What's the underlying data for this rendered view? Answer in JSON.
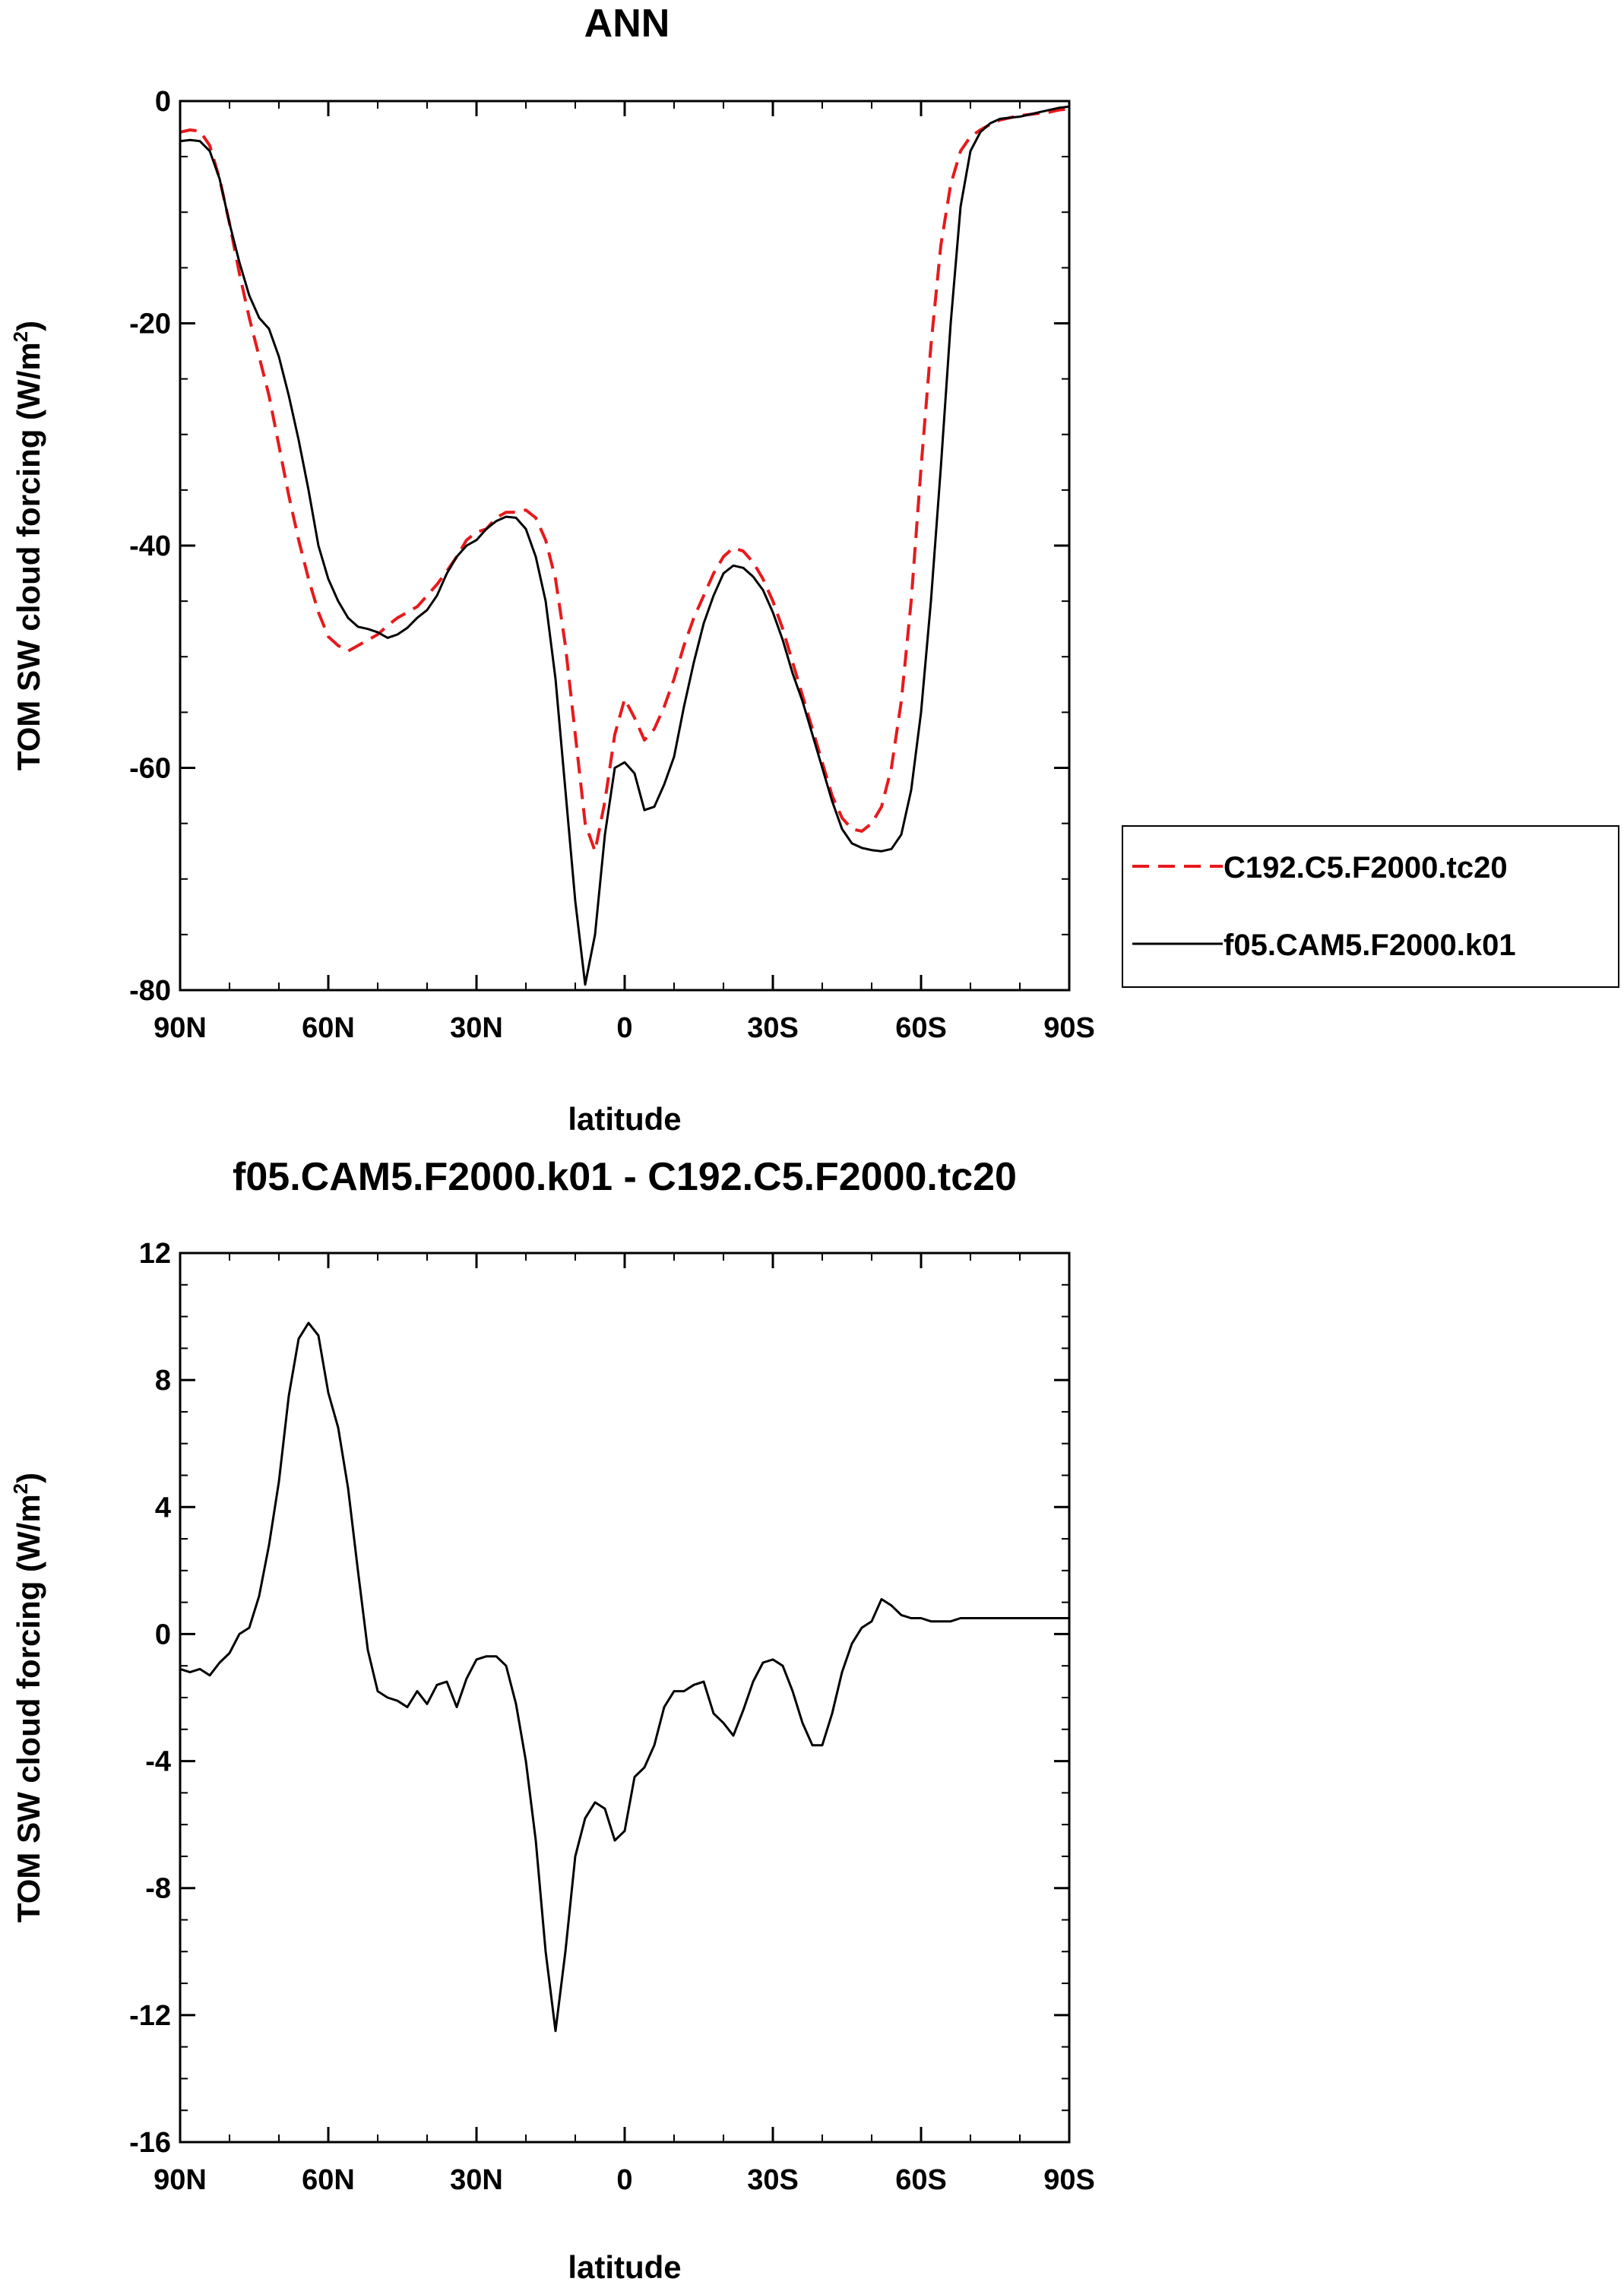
{
  "chart_data": [
    {
      "type": "line",
      "title": "ANN",
      "xlabel": "latitude",
      "ylabel_main": "TOM SW cloud forcing (W/m",
      "ylabel_sup": "2",
      "ylabel_close": ")",
      "xlim": [
        -90,
        90
      ],
      "ylim": [
        -80,
        0
      ],
      "x_ticks": [
        -90,
        -60,
        -30,
        0,
        30,
        60,
        90
      ],
      "x_tick_labels": [
        "90N",
        "60N",
        "30N",
        "0",
        "30S",
        "60S",
        "90S"
      ],
      "y_ticks": [
        0,
        -20,
        -40,
        -60,
        -80
      ],
      "y_tick_labels": [
        "0",
        "-20",
        "-40",
        "-60",
        "-80"
      ],
      "y_minor_step": 5,
      "x_minor_step": 10,
      "legend_position": "right",
      "series": [
        {
          "name": "C192.C5.F2000.tc20",
          "color": "#e8191c",
          "dash": "dashed",
          "x": [
            -90,
            -88,
            -86,
            -84,
            -82,
            -80,
            -78,
            -76,
            -74,
            -72,
            -70,
            -68,
            -66,
            -64,
            -62,
            -60,
            -58,
            -56,
            -54,
            -52,
            -50,
            -48,
            -46,
            -44,
            -42,
            -40,
            -38,
            -36,
            -34,
            -32,
            -30,
            -28,
            -26,
            -24,
            -22,
            -20,
            -18,
            -16,
            -14,
            -12,
            -10,
            -8,
            -6,
            -4,
            -2,
            0,
            2,
            4,
            6,
            8,
            10,
            12,
            14,
            16,
            18,
            20,
            22,
            24,
            26,
            28,
            30,
            32,
            34,
            36,
            38,
            40,
            42,
            44,
            46,
            48,
            50,
            52,
            54,
            56,
            58,
            60,
            62,
            64,
            66,
            68,
            70,
            72,
            74,
            76,
            78,
            80,
            82,
            84,
            86,
            88,
            90
          ],
          "y": [
            -2.8,
            -2.6,
            -2.7,
            -4,
            -7,
            -11,
            -15.5,
            -19.5,
            -23,
            -26.5,
            -31,
            -35.5,
            -39.5,
            -43,
            -46,
            -48.2,
            -49,
            -49.5,
            -49,
            -48.5,
            -48,
            -47.2,
            -46.5,
            -46,
            -45.5,
            -44.5,
            -43.5,
            -42.3,
            -41,
            -39.5,
            -38.8,
            -38.5,
            -37.5,
            -37,
            -37,
            -36.8,
            -37.5,
            -39.5,
            -43,
            -49,
            -57,
            -65,
            -67.5,
            -63,
            -57,
            -53.8,
            -55.5,
            -57.5,
            -56.5,
            -54.5,
            -52,
            -49,
            -46.5,
            -44.5,
            -42.5,
            -41,
            -40.2,
            -40.5,
            -41.5,
            -43,
            -45,
            -47.5,
            -50.5,
            -53.5,
            -56.5,
            -59.5,
            -62.5,
            -64.5,
            -65.5,
            -65.7,
            -65,
            -63.5,
            -60,
            -54,
            -45,
            -33,
            -22,
            -13,
            -7.5,
            -4.5,
            -3.2,
            -2.6,
            -2.1,
            -1.7,
            -1.5,
            -1.3,
            -1.2,
            -1.1,
            -1,
            -0.8,
            -0.7
          ]
        },
        {
          "name": "f05.CAM5.F2000.k01",
          "color": "#000000",
          "dash": "solid",
          "x": [
            -90,
            -88,
            -86,
            -84,
            -82,
            -80,
            -78,
            -76,
            -74,
            -72,
            -70,
            -68,
            -66,
            -64,
            -62,
            -60,
            -58,
            -56,
            -54,
            -52,
            -50,
            -48,
            -46,
            -44,
            -42,
            -40,
            -38,
            -36,
            -34,
            -32,
            -30,
            -28,
            -26,
            -24,
            -22,
            -20,
            -18,
            -16,
            -14,
            -12,
            -10,
            -8,
            -6,
            -4,
            -2,
            0,
            2,
            4,
            6,
            8,
            10,
            12,
            14,
            16,
            18,
            20,
            22,
            24,
            26,
            28,
            30,
            32,
            34,
            36,
            38,
            40,
            42,
            44,
            46,
            48,
            50,
            52,
            54,
            56,
            58,
            60,
            62,
            64,
            66,
            68,
            70,
            72,
            74,
            76,
            78,
            80,
            82,
            84,
            86,
            88,
            90
          ],
          "y": [
            -3.6,
            -3.5,
            -3.6,
            -4.5,
            -7,
            -11,
            -14.5,
            -17.5,
            -19.5,
            -20.5,
            -23,
            -26.5,
            -30.5,
            -35,
            -40,
            -43,
            -45,
            -46.5,
            -47.3,
            -47.5,
            -47.8,
            -48.3,
            -48,
            -47.4,
            -46.5,
            -45.8,
            -44.5,
            -42.5,
            -41,
            -40,
            -39.5,
            -38.5,
            -37.8,
            -37.4,
            -37.5,
            -38.5,
            -41,
            -45,
            -52,
            -62,
            -72,
            -79.5,
            -75,
            -66,
            -60,
            -59.5,
            -60.5,
            -63.8,
            -63.5,
            -61.5,
            -59,
            -54.5,
            -50.5,
            -47,
            -44.5,
            -42.5,
            -41.8,
            -42,
            -42.8,
            -44,
            -46,
            -48.5,
            -51.5,
            -54,
            -57,
            -60,
            -63,
            -65.5,
            -66.8,
            -67.2,
            -67.4,
            -67.5,
            -67.3,
            -66,
            -62,
            -55,
            -45,
            -33,
            -20,
            -9.5,
            -4.5,
            -2.8,
            -2,
            -1.6,
            -1.5,
            -1.4,
            -1.2,
            -1,
            -0.8,
            -0.6,
            -0.5
          ]
        }
      ]
    },
    {
      "type": "line",
      "title": "f05.CAM5.F2000.k01 - C192.C5.F2000.tc20",
      "xlabel": "latitude",
      "ylabel_main": "TOM SW cloud forcing (W/m",
      "ylabel_sup": "2",
      "ylabel_close": ")",
      "xlim": [
        -90,
        90
      ],
      "ylim": [
        -16,
        12
      ],
      "x_ticks": [
        -90,
        -60,
        -30,
        0,
        30,
        60,
        90
      ],
      "x_tick_labels": [
        "90N",
        "60N",
        "30N",
        "0",
        "30S",
        "60S",
        "90S"
      ],
      "y_ticks": [
        12,
        8,
        4,
        0,
        -4,
        -8,
        -12,
        -16
      ],
      "y_tick_labels": [
        "12",
        "8",
        "4",
        "0",
        "-4",
        "-8",
        "-12",
        "-16"
      ],
      "y_minor_step": 1,
      "x_minor_step": 10,
      "series": [
        {
          "color": "#000000",
          "dash": "solid",
          "x": [
            -90,
            -88,
            -86,
            -84,
            -82,
            -80,
            -78,
            -76,
            -74,
            -72,
            -70,
            -68,
            -66,
            -64,
            -62,
            -60,
            -58,
            -56,
            -54,
            -52,
            -50,
            -48,
            -46,
            -44,
            -42,
            -40,
            -38,
            -36,
            -34,
            -32,
            -30,
            -28,
            -26,
            -24,
            -22,
            -20,
            -18,
            -16,
            -14,
            -12,
            -10,
            -8,
            -6,
            -4,
            -2,
            0,
            2,
            4,
            6,
            8,
            10,
            12,
            14,
            16,
            18,
            20,
            22,
            24,
            26,
            28,
            30,
            32,
            34,
            36,
            38,
            40,
            42,
            44,
            46,
            48,
            50,
            52,
            54,
            56,
            58,
            60,
            62,
            64,
            66,
            68,
            70,
            72,
            74,
            76,
            78,
            80,
            82,
            84,
            86,
            88,
            90
          ],
          "y": [
            -1.1,
            -1.2,
            -1.1,
            -1.3,
            -0.9,
            -0.6,
            0,
            0.2,
            1.2,
            2.8,
            4.8,
            7.5,
            9.3,
            9.8,
            9.4,
            7.6,
            6.5,
            4.6,
            2,
            -0.5,
            -1.8,
            -2,
            -2.1,
            -2.3,
            -1.8,
            -2.2,
            -1.6,
            -1.5,
            -2.3,
            -1.4,
            -0.8,
            -0.7,
            -0.7,
            -1,
            -2.2,
            -4,
            -6.5,
            -10,
            -12.5,
            -10,
            -7,
            -5.8,
            -5.3,
            -5.5,
            -6.5,
            -6.2,
            -4.5,
            -4.2,
            -3.5,
            -2.3,
            -1.8,
            -1.8,
            -1.6,
            -1.5,
            -2.5,
            -2.8,
            -3.2,
            -2.4,
            -1.5,
            -0.9,
            -0.8,
            -1,
            -1.8,
            -2.8,
            -3.5,
            -3.5,
            -2.5,
            -1.2,
            -0.3,
            0.2,
            0.4,
            1.1,
            0.9,
            0.6,
            0.5,
            0.5,
            0.4,
            0.4,
            0.4,
            0.5,
            0.5,
            0.5,
            0.5,
            0.5,
            0.5,
            0.5,
            0.5,
            0.5,
            0.5,
            0.5,
            0.5
          ]
        }
      ]
    }
  ]
}
